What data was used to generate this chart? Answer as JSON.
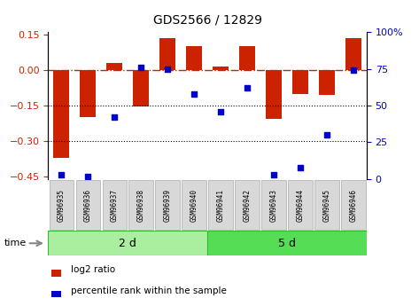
{
  "title": "GDS2566 / 12829",
  "samples": [
    "GSM96935",
    "GSM96936",
    "GSM96937",
    "GSM96938",
    "GSM96939",
    "GSM96940",
    "GSM96941",
    "GSM96942",
    "GSM96943",
    "GSM96944",
    "GSM96945",
    "GSM96946"
  ],
  "log2_ratio": [
    -0.37,
    -0.2,
    0.03,
    -0.155,
    0.135,
    0.1,
    0.015,
    0.1,
    -0.205,
    -0.1,
    -0.105,
    0.135
  ],
  "percentile_rank": [
    3,
    2,
    42,
    76,
    75,
    58,
    46,
    62,
    3,
    8,
    30,
    74
  ],
  "bar_color": "#cc2200",
  "dot_color": "#0000cc",
  "group1_label": "2 d",
  "group2_label": "5 d",
  "group1_count": 6,
  "group2_count": 6,
  "ylim_left": [
    -0.46,
    0.16
  ],
  "ylim_right": [
    0,
    100
  ],
  "yticks_left": [
    0.15,
    0.0,
    -0.15,
    -0.3,
    -0.45
  ],
  "yticks_right": [
    100,
    75,
    50,
    25,
    0
  ],
  "hline_y": 0.0,
  "dotted_lines": [
    -0.15,
    -0.3
  ],
  "legend_red": "log2 ratio",
  "legend_blue": "percentile rank within the sample",
  "time_label": "time",
  "group_color1": "#aaeea0",
  "group_color2": "#55dd55",
  "group_edge_color": "#33bb33"
}
